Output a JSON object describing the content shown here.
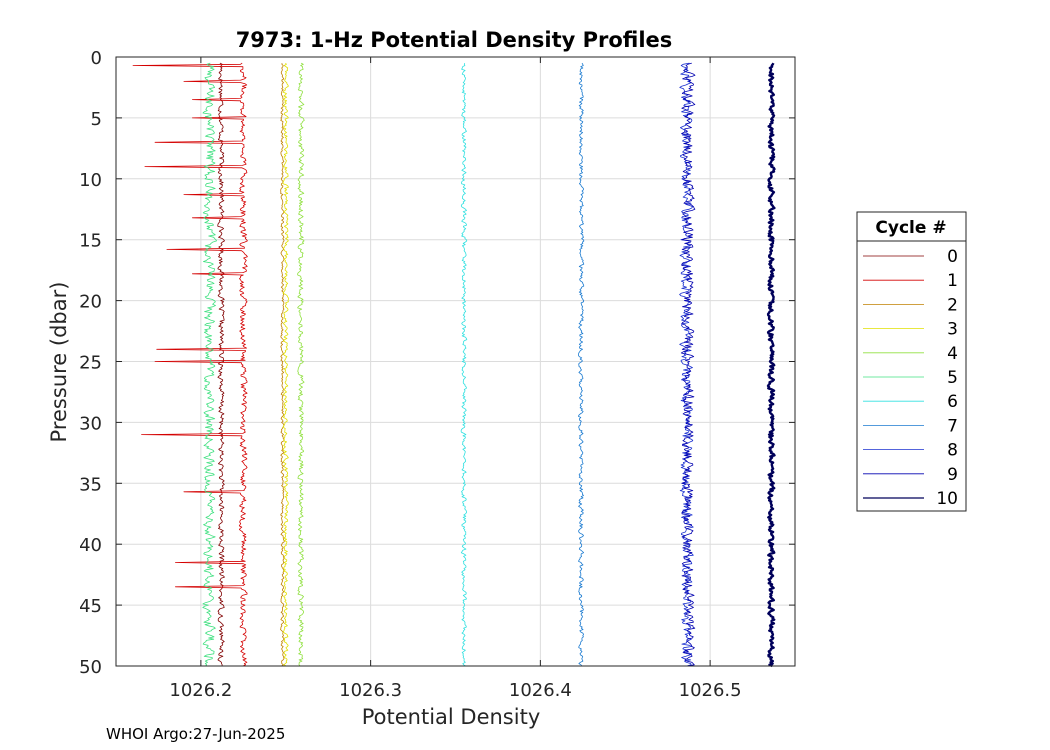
{
  "chart_data": {
    "type": "line",
    "title": "7973: 1-Hz Potential Density Profiles",
    "xlabel": "Potential Density",
    "ylabel": "Pressure (dbar)",
    "xlim": [
      1026.15,
      1026.55
    ],
    "ylim": [
      0,
      50
    ],
    "y_reversed": true,
    "grid": true,
    "x_ticks": [
      1026.2,
      1026.3,
      1026.4,
      1026.5
    ],
    "x_tick_labels": [
      "1026.2",
      "1026.3",
      "1026.4",
      "1026.5"
    ],
    "y_ticks": [
      0,
      5,
      10,
      15,
      20,
      25,
      30,
      35,
      40,
      45,
      50
    ],
    "y_tick_labels": [
      "0",
      "5",
      "10",
      "15",
      "20",
      "25",
      "30",
      "35",
      "40",
      "45",
      "50"
    ],
    "legend": {
      "title": "Cycle #",
      "placement": "outside-right"
    },
    "series": [
      {
        "name": "0",
        "color": "#800000",
        "x_base": 1026.212,
        "pmin": 0.5,
        "pmax": 50,
        "noise": 0.0015,
        "width": 0.8
      },
      {
        "name": "1",
        "color": "#d40000",
        "x_base": 1026.225,
        "pmin": 0.5,
        "pmax": 50,
        "noise": 0.0018,
        "width": 0.8,
        "spikes": [
          [
            0.7,
            1026.16
          ],
          [
            2.0,
            1026.19
          ],
          [
            3.5,
            1026.195
          ],
          [
            5.0,
            1026.195
          ],
          [
            7.0,
            1026.173
          ],
          [
            9.0,
            1026.167
          ],
          [
            11.3,
            1026.19
          ],
          [
            13.2,
            1026.195
          ],
          [
            15.8,
            1026.18
          ],
          [
            17.8,
            1026.195
          ],
          [
            24.0,
            1026.174
          ],
          [
            25.0,
            1026.173
          ],
          [
            31.0,
            1026.165
          ],
          [
            35.7,
            1026.19
          ],
          [
            41.5,
            1026.185
          ],
          [
            43.5,
            1026.185
          ]
        ]
      },
      {
        "name": "2",
        "color": "#c08000",
        "x_base": 1026.248,
        "pmin": 0.5,
        "pmax": 50,
        "noise": 0.0008,
        "width": 0.8
      },
      {
        "name": "3",
        "color": "#e0e000",
        "x_base": 1026.25,
        "pmin": 0.5,
        "pmax": 50,
        "noise": 0.0012,
        "width": 0.8
      },
      {
        "name": "4",
        "color": "#90e040",
        "x_base": 1026.259,
        "pmin": 0.5,
        "pmax": 50,
        "noise": 0.0015,
        "width": 0.8
      },
      {
        "name": "5",
        "color": "#40e080",
        "x_base": 1026.205,
        "pmin": 0.5,
        "pmax": 50,
        "noise": 0.003,
        "width": 0.8
      },
      {
        "name": "6",
        "color": "#30e0e0",
        "x_base": 1026.355,
        "pmin": 0.5,
        "pmax": 50,
        "noise": 0.0012,
        "width": 0.8
      },
      {
        "name": "7",
        "color": "#1a7ad0",
        "x_base": 1026.424,
        "pmin": 0.5,
        "pmax": 50,
        "noise": 0.0012,
        "width": 0.8
      },
      {
        "name": "8",
        "color": "#1a30d0",
        "x_base": 1026.486,
        "pmin": 0.5,
        "pmax": 50,
        "noise": 0.003,
        "width": 0.8
      },
      {
        "name": "9",
        "color": "#0000b0",
        "x_base": 1026.487,
        "pmin": 0.5,
        "pmax": 50,
        "noise": 0.003,
        "width": 0.8
      },
      {
        "name": "10",
        "color": "#00005a",
        "x_base": 1026.536,
        "pmin": 0.5,
        "pmax": 50,
        "noise": 0.0015,
        "width": 2.4
      }
    ]
  },
  "footer": {
    "text": "WHOI Argo:27-Jun-2025"
  }
}
